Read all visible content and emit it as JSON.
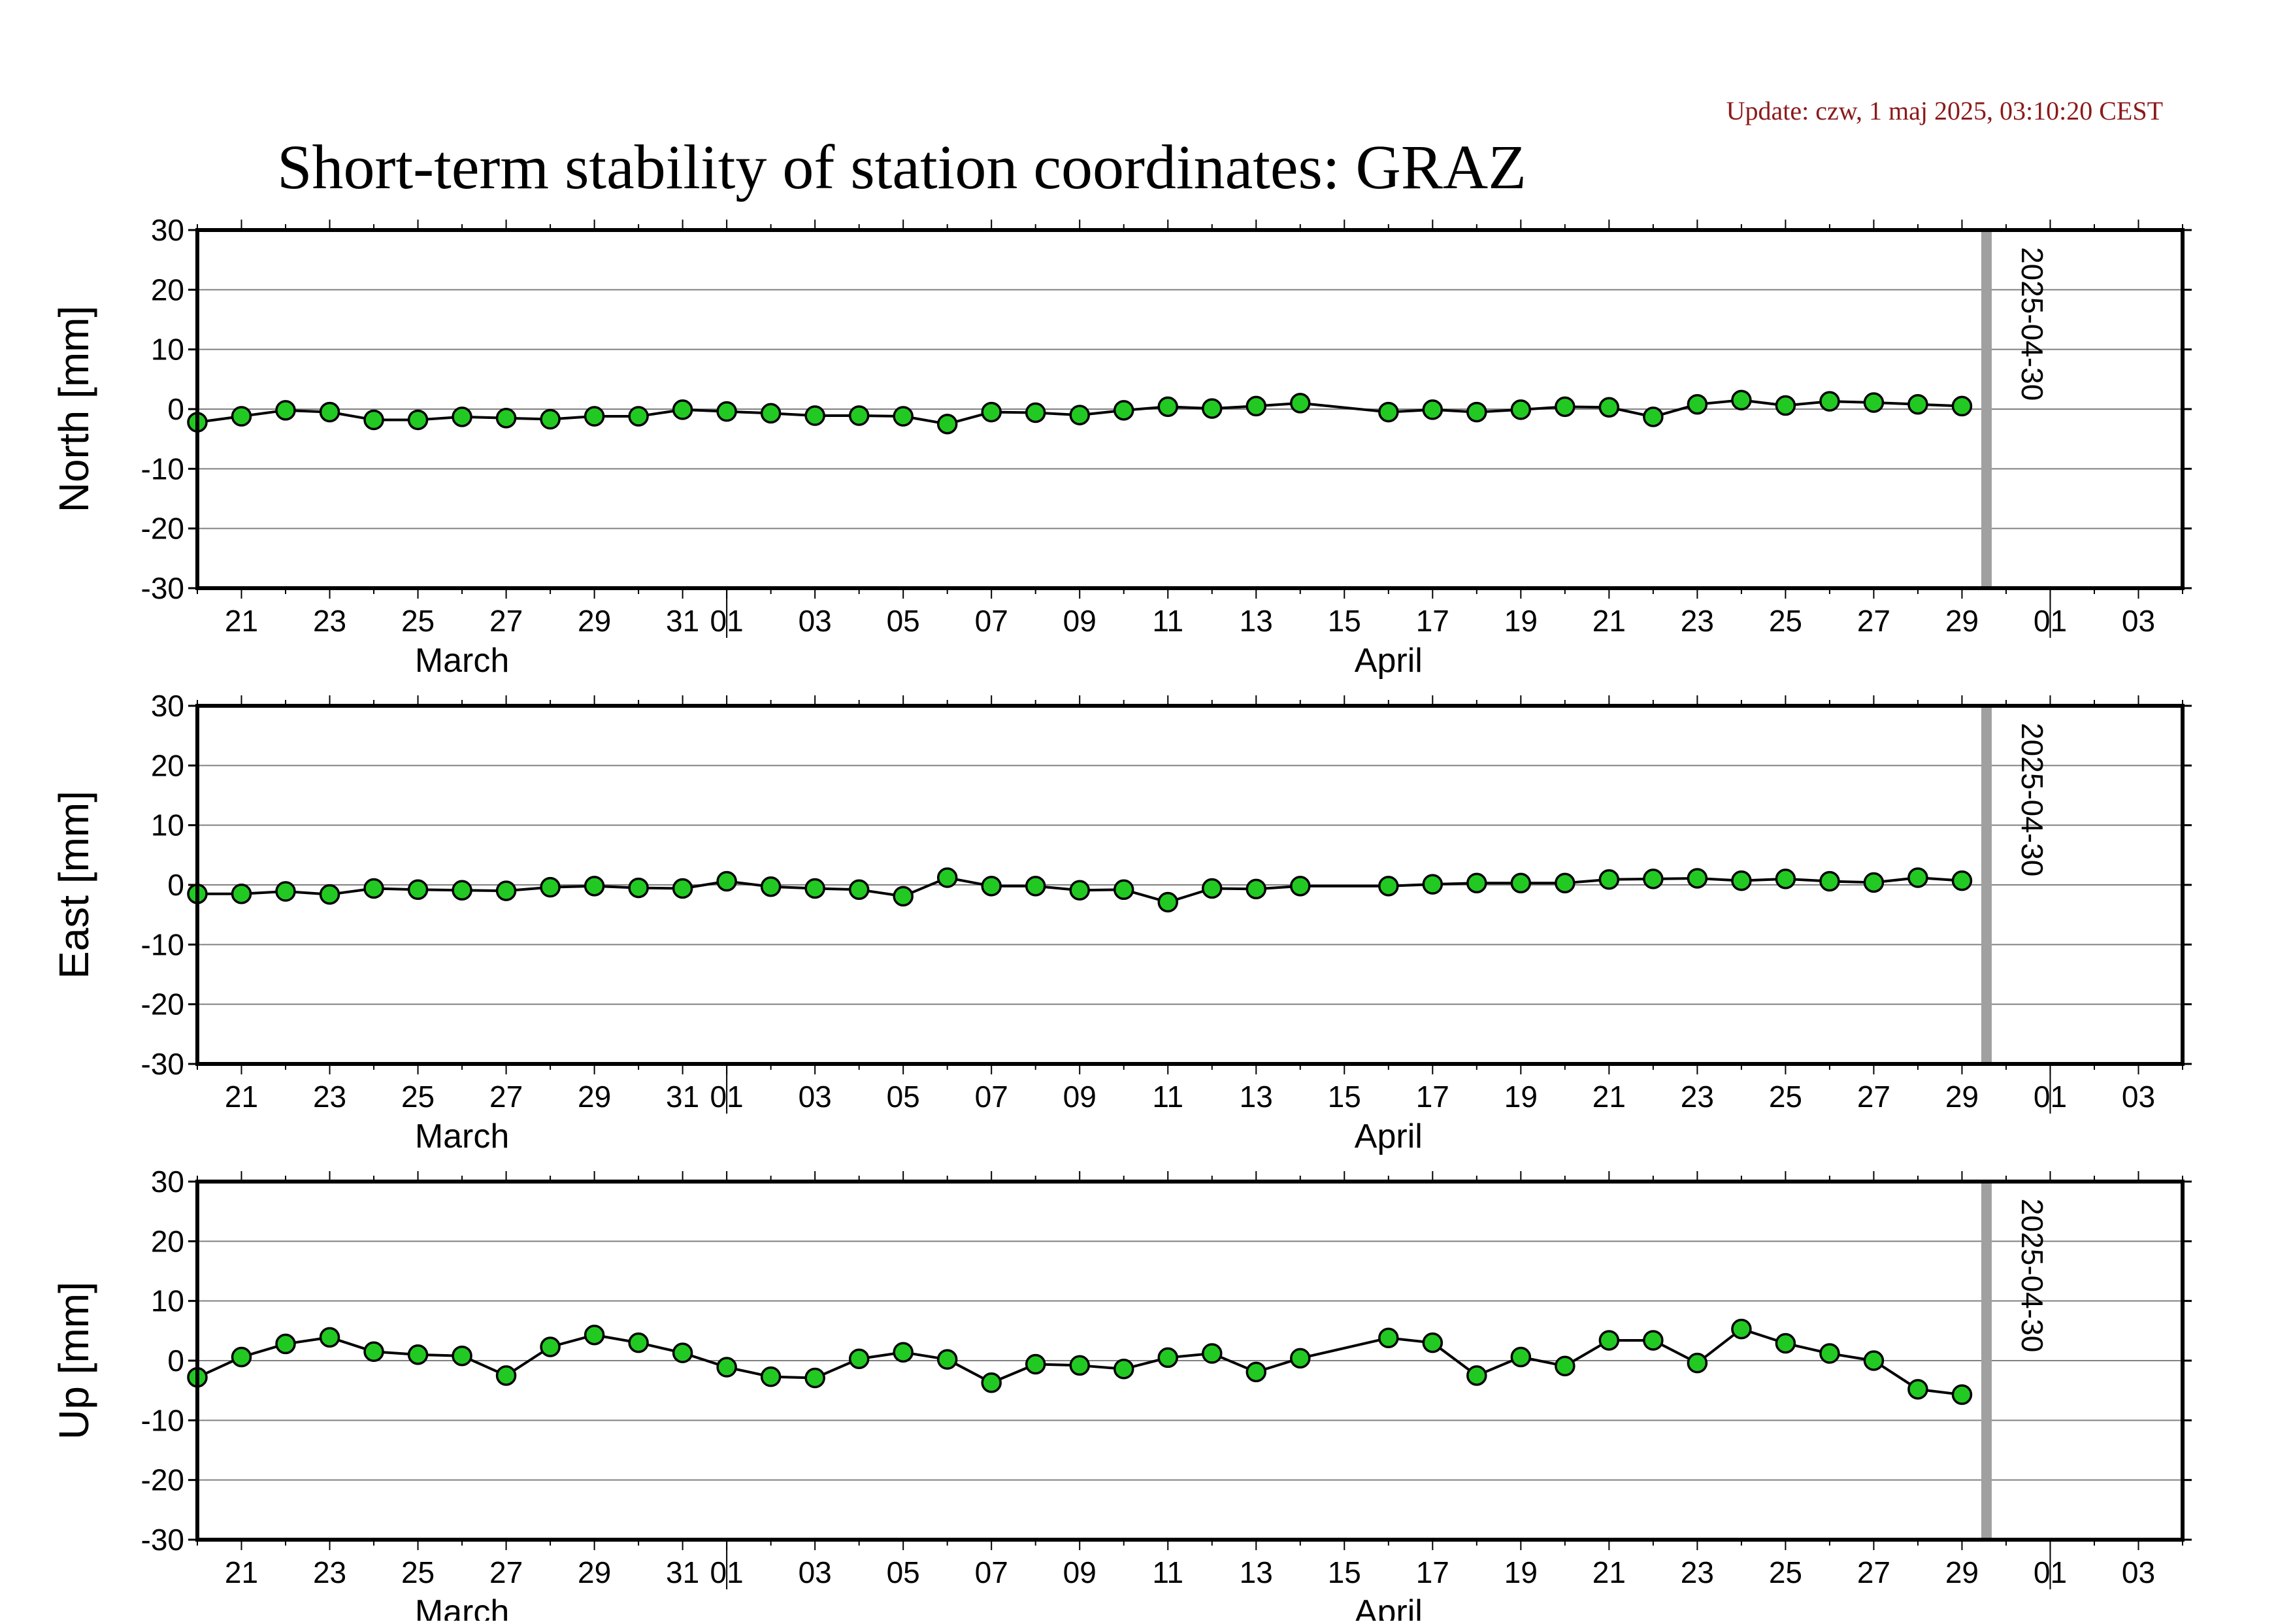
{
  "update_text": "Update: czw, 1 maj 2025, 03:10:20 CEST",
  "title": "Short-term stability of station coordinates: GRAZ",
  "colors": {
    "marker_fill": "#22c922",
    "line": "#000000",
    "marker_edge": "#000000",
    "grid": "#808080",
    "vline": "#a0a0a0",
    "update_text": "#8b1a1a"
  },
  "chart_data": [
    {
      "type": "line",
      "ylabel": "North [mm]",
      "ylim": [
        -30,
        30
      ],
      "yticks": [
        30,
        20,
        10,
        0,
        -10,
        -20,
        -30
      ],
      "xlim": [
        "2025-03-20",
        "2025-05-04"
      ],
      "xtick_labels": [
        "21",
        "23",
        "25",
        "27",
        "29",
        "31",
        "01",
        "03",
        "05",
        "07",
        "09",
        "11",
        "13",
        "15",
        "17",
        "19",
        "21",
        "23",
        "25",
        "27",
        "29",
        "01",
        "03"
      ],
      "month_labels": [
        "March",
        "April"
      ],
      "marker_line": {
        "date": "2025-04-30",
        "label": "2025-04-30"
      },
      "grid": true,
      "series": [
        {
          "x": [
            "2025-03-20",
            "2025-03-21",
            "2025-03-22",
            "2025-03-23",
            "2025-03-24",
            "2025-03-25",
            "2025-03-26",
            "2025-03-27",
            "2025-03-28",
            "2025-03-29",
            "2025-03-30",
            "2025-03-31",
            "2025-04-01",
            "2025-04-02",
            "2025-04-03",
            "2025-04-04",
            "2025-04-05",
            "2025-04-06",
            "2025-04-07",
            "2025-04-08",
            "2025-04-09",
            "2025-04-10",
            "2025-04-11",
            "2025-04-12",
            "2025-04-13",
            "2025-04-14",
            "2025-04-16",
            "2025-04-17",
            "2025-04-18",
            "2025-04-19",
            "2025-04-20",
            "2025-04-21",
            "2025-04-22",
            "2025-04-23",
            "2025-04-24",
            "2025-04-25",
            "2025-04-26",
            "2025-04-27",
            "2025-04-28",
            "2025-04-29"
          ],
          "y": [
            -2.2,
            -1.2,
            -0.2,
            -0.5,
            -1.8,
            -1.8,
            -1.3,
            -1.5,
            -1.7,
            -1.2,
            -1.2,
            -0.1,
            -0.4,
            -0.7,
            -1.1,
            -1.1,
            -1.2,
            -2.5,
            -0.5,
            -0.6,
            -1.0,
            -0.2,
            0.4,
            0.1,
            0.5,
            1.0,
            -0.5,
            -0.1,
            -0.5,
            -0.1,
            0.4,
            0.3,
            -1.3,
            0.8,
            1.5,
            0.6,
            1.3,
            1.1,
            0.8,
            0.5
          ]
        }
      ]
    },
    {
      "type": "line",
      "ylabel": "East [mm]",
      "ylim": [
        -30,
        30
      ],
      "yticks": [
        30,
        20,
        10,
        0,
        -10,
        -20,
        -30
      ],
      "xlim": [
        "2025-03-20",
        "2025-05-04"
      ],
      "xtick_labels": [
        "21",
        "23",
        "25",
        "27",
        "29",
        "31",
        "01",
        "03",
        "05",
        "07",
        "09",
        "11",
        "13",
        "15",
        "17",
        "19",
        "21",
        "23",
        "25",
        "27",
        "29",
        "01",
        "03"
      ],
      "month_labels": [
        "March",
        "April"
      ],
      "marker_line": {
        "date": "2025-04-30",
        "label": "2025-04-30"
      },
      "grid": true,
      "series": [
        {
          "x": [
            "2025-03-20",
            "2025-03-21",
            "2025-03-22",
            "2025-03-23",
            "2025-03-24",
            "2025-03-25",
            "2025-03-26",
            "2025-03-27",
            "2025-03-28",
            "2025-03-29",
            "2025-03-30",
            "2025-03-31",
            "2025-04-01",
            "2025-04-02",
            "2025-04-03",
            "2025-04-04",
            "2025-04-05",
            "2025-04-06",
            "2025-04-07",
            "2025-04-08",
            "2025-04-09",
            "2025-04-10",
            "2025-04-11",
            "2025-04-12",
            "2025-04-13",
            "2025-04-14",
            "2025-04-16",
            "2025-04-17",
            "2025-04-18",
            "2025-04-19",
            "2025-04-20",
            "2025-04-21",
            "2025-04-22",
            "2025-04-23",
            "2025-04-24",
            "2025-04-25",
            "2025-04-26",
            "2025-04-27",
            "2025-04-28",
            "2025-04-29"
          ],
          "y": [
            -1.5,
            -1.5,
            -1.1,
            -1.6,
            -0.6,
            -0.8,
            -0.9,
            -1.0,
            -0.4,
            -0.2,
            -0.5,
            -0.6,
            0.6,
            -0.3,
            -0.6,
            -0.8,
            -1.9,
            1.2,
            -0.2,
            -0.2,
            -0.9,
            -0.8,
            -2.9,
            -0.6,
            -0.7,
            -0.2,
            -0.2,
            0.1,
            0.3,
            0.3,
            0.3,
            0.9,
            1.0,
            1.1,
            0.7,
            1.0,
            0.6,
            0.4,
            1.2,
            0.7
          ]
        }
      ]
    },
    {
      "type": "line",
      "ylabel": "Up [mm]",
      "ylim": [
        -30,
        30
      ],
      "yticks": [
        30,
        20,
        10,
        0,
        -10,
        -20,
        -30
      ],
      "xlim": [
        "2025-03-20",
        "2025-05-04"
      ],
      "xtick_labels": [
        "21",
        "23",
        "25",
        "27",
        "29",
        "31",
        "01",
        "03",
        "05",
        "07",
        "09",
        "11",
        "13",
        "15",
        "17",
        "19",
        "21",
        "23",
        "25",
        "27",
        "29",
        "01",
        "03"
      ],
      "month_labels": [
        "March",
        "April"
      ],
      "marker_line": {
        "date": "2025-04-30",
        "label": "2025-04-30"
      },
      "grid": true,
      "series": [
        {
          "x": [
            "2025-03-20",
            "2025-03-21",
            "2025-03-22",
            "2025-03-23",
            "2025-03-24",
            "2025-03-25",
            "2025-03-26",
            "2025-03-27",
            "2025-03-28",
            "2025-03-29",
            "2025-03-30",
            "2025-03-31",
            "2025-04-01",
            "2025-04-02",
            "2025-04-03",
            "2025-04-04",
            "2025-04-05",
            "2025-04-06",
            "2025-04-07",
            "2025-04-08",
            "2025-04-09",
            "2025-04-10",
            "2025-04-11",
            "2025-04-12",
            "2025-04-13",
            "2025-04-14",
            "2025-04-16",
            "2025-04-17",
            "2025-04-18",
            "2025-04-19",
            "2025-04-20",
            "2025-04-21",
            "2025-04-22",
            "2025-04-23",
            "2025-04-24",
            "2025-04-25",
            "2025-04-26",
            "2025-04-27",
            "2025-04-28",
            "2025-04-29"
          ],
          "y": [
            -2.8,
            0.6,
            2.8,
            3.9,
            1.5,
            1.0,
            0.8,
            -2.5,
            2.3,
            4.3,
            3.0,
            1.3,
            -1.1,
            -2.7,
            -2.9,
            0.3,
            1.4,
            0.2,
            -3.7,
            -0.6,
            -0.8,
            -1.4,
            0.5,
            1.2,
            -1.9,
            0.4,
            3.8,
            3.0,
            -2.5,
            0.6,
            -0.9,
            3.4,
            3.4,
            -0.4,
            5.3,
            2.9,
            1.2,
            0.0,
            -4.8,
            -5.7
          ]
        }
      ]
    }
  ]
}
